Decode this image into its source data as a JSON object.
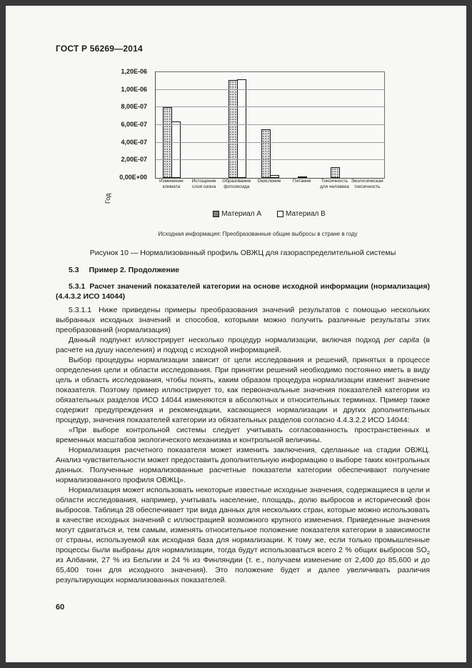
{
  "header": {
    "title": "ГОСТ Р 56269—2014"
  },
  "chart_data": {
    "type": "bar",
    "title": "",
    "ylabel": "Год",
    "xlabel": "",
    "categories": [
      "Изменение климата",
      "Истощение слоя озона",
      "Образование фотооксида",
      "Окисление",
      "Питание",
      "Токсичность для человека",
      "Экологическая токсичность"
    ],
    "series": [
      {
        "name": "Материал А",
        "values": [
          8e-07,
          0,
          1.11e-06,
          5.5e-07,
          2e-08,
          1.2e-07,
          0
        ]
      },
      {
        "name": "Материал В",
        "values": [
          6.4e-07,
          0,
          1.12e-06,
          3e-08,
          0,
          0,
          0
        ]
      }
    ],
    "ylim": [
      0,
      1.2e-06
    ],
    "ytick_step": 2e-07,
    "ytick_labels": [
      "0,00E+00",
      "2,00E-07",
      "4,00E-07",
      "6,00E-07",
      "8,00E-07",
      "1,00E-06",
      "1,20E-06"
    ],
    "grid": true,
    "legend_position": "bottom",
    "source_note": "Исходная информация: Преобразованные общие выбросы в стране в году"
  },
  "figure_caption": "Рисунок 10 — Нормализованный профиль ОВЖЦ для газораспределительной системы",
  "sections": {
    "heading_53": {
      "number": "5.3",
      "title": "Пример 2. Продолжение"
    },
    "heading_531": {
      "number": "5.3.1",
      "title": "Расчет значений показателей категории на основе исходной информации (нормализация) (4.4.3.2 ИСО 14044)"
    }
  },
  "body": {
    "paragraphs": [
      {
        "label": "5.3.1.1",
        "segments": [
          {
            "text": "Ниже приведены примеры преобразования значений результатов с помощью нескольких выбранных исходных значений и способов, которыми можно получить различные результаты этих преобразований (нормализация)"
          }
        ]
      },
      {
        "segments": [
          {
            "text": "Данный подпункт иллюстрирует несколько процедур нормализации, включая подход "
          },
          {
            "text": "per capita",
            "italic": true
          },
          {
            "text": " (в расчете на душу населения) и подход с исходной информацией."
          }
        ]
      },
      {
        "segments": [
          {
            "text": "Выбор процедуры нормализации зависит от цели исследования и решений, принятых в процессе определения цели и области исследования. При принятии решений необходимо постоянно иметь в виду цель и область исследования, чтобы понять, каким образом процедура нормализации изменит значение показателя. Поэтому пример иллюстрирует то, как первоначальные значения показателей категории из обязательных разделов ИСО 14044 изменяются в абсолютных и относительных терминах. Пример также содержит предупреждения и рекомендации, касающиеся нормализации и других дополнительных процедур, значения показателей категории из обязательных разделов согласно 4.4.3.2.2 ИСО 14044:"
          }
        ]
      },
      {
        "segments": [
          {
            "text": "«При выборе контрольной системы следует учитывать согласованность пространственных и временных масштабов экологического механизма и контрольной величины."
          }
        ]
      },
      {
        "segments": [
          {
            "text": "Нормализация расчетного показателя может изменить заключения, сделанные на стадии ОВЖЦ. Анализ чувствительности может предоставить дополнительную информацию о выборе таких контрольных данных. Полученные нормализованные расчетные показатели категории обеспечивают получение нормализованного профиля ОВЖЦ»."
          }
        ]
      },
      {
        "segments": [
          {
            "text": "Нормализация может использовать некоторые известные исходные значения, содержащиеся в цели и области исследования, например, учитывать население, площадь, долю выбросов и исторический фон выбросов. Таблица 28 обеспечивает три вида данных для нескольких стран, которые можно использовать в качестве исходных значений с иллюстрацией возможного крупного изменения. Приведенные значения могут сдвигаться и, тем самым, изменять относительное положение показателя категории в зависимости от страны, используемой как исходная база для нормализации. К тому же, если только промышленные процессы были выбраны для нормализации, тогда будут использоваться всего 2 % общих выбросов SO"
          },
          {
            "text": "2",
            "sub": true
          },
          {
            "text": " из Албании, 27 % из Бельгии и 24 % из Финляндии (т. е., получаем изменение от 2,400 до 85,600 и до 65,400 тонн для исходного значения). Это положение будет и далее увеличивать различия результирующих нормализованных показателей."
          }
        ]
      }
    ]
  },
  "footer": {
    "page_number": "60"
  }
}
